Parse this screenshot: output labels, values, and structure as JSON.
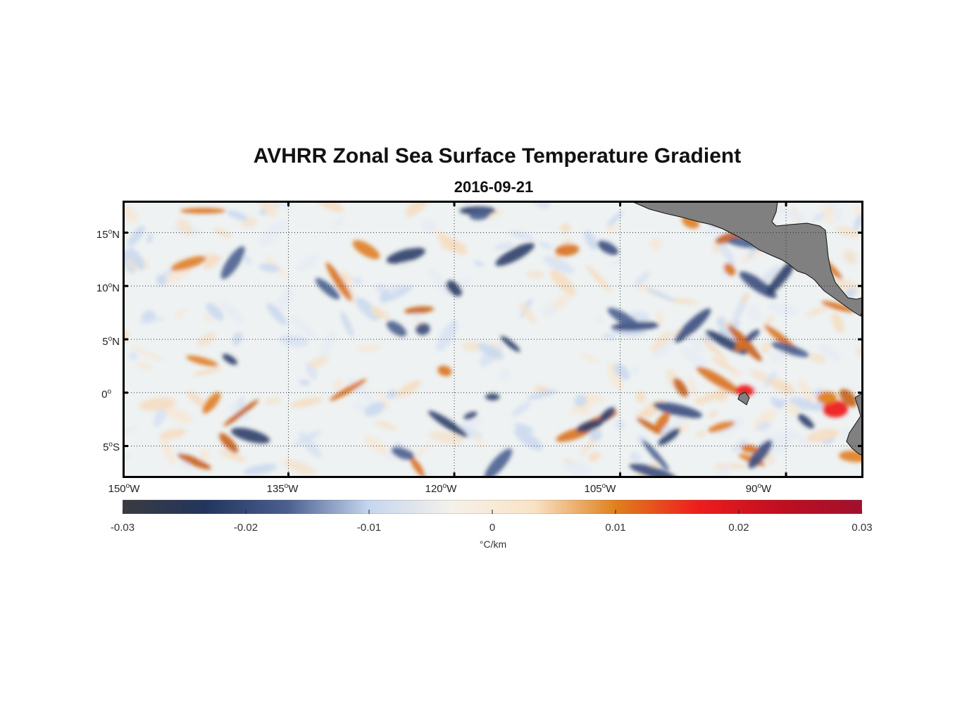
{
  "title": "AVHRR Zonal Sea Surface Temperature Gradient",
  "subtitle": "2016-09-21",
  "map": {
    "lon_range": [
      -150,
      -83
    ],
    "lat_range": [
      -8,
      18
    ],
    "land_color": "#808080",
    "y_ticks": [
      {
        "deg": "15",
        "hemi": "N",
        "value": 15
      },
      {
        "deg": "10",
        "hemi": "N",
        "value": 10
      },
      {
        "deg": "5",
        "hemi": "N",
        "value": 5
      },
      {
        "deg": "0",
        "hemi": "",
        "value": 0
      },
      {
        "deg": "5",
        "hemi": "S",
        "value": -5
      }
    ],
    "x_ticks": [
      {
        "deg": "150",
        "hemi": "W",
        "value": -150
      },
      {
        "deg": "135",
        "hemi": "W",
        "value": -135
      },
      {
        "deg": "120",
        "hemi": "W",
        "value": -120
      },
      {
        "deg": "105",
        "hemi": "W",
        "value": -105
      },
      {
        "deg": "90",
        "hemi": "W",
        "value": -90
      }
    ]
  },
  "colorbar": {
    "ticks": [
      "-0.03",
      "-0.02",
      "-0.01",
      "0",
      "0.01",
      "0.02",
      "0.03"
    ],
    "label": "°C/km",
    "stops": [
      "#3a3b40",
      "#22355e",
      "#4a5f90",
      "#c6d6ef",
      "#f4f1ea",
      "#f9e3c6",
      "#e0801d",
      "#ee1d1d",
      "#c00f20",
      "#a0102e"
    ]
  }
}
